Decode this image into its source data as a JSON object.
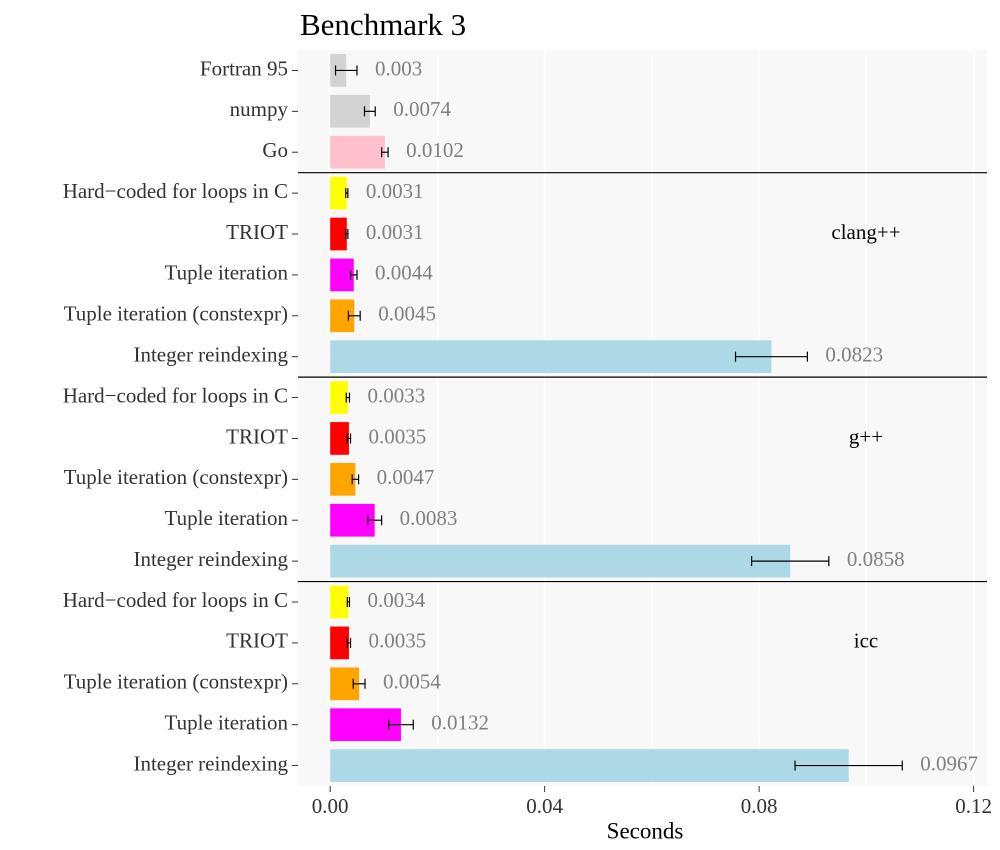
{
  "chart_data": {
    "type": "bar",
    "orientation": "horizontal",
    "title": "Benchmark 3",
    "x_label": "Seconds",
    "categories": [
      "Fortran 95",
      "numpy",
      "Go",
      "Hard−coded for loops in C",
      "TRIOT",
      "Tuple iteration",
      "Tuple iteration (constexpr)",
      "Integer reindexing",
      "Hard−coded for loops in C",
      "TRIOT",
      "Tuple iteration (constexpr)",
      "Tuple iteration",
      "Integer reindexing",
      "Hard−coded for loops in C",
      "TRIOT",
      "Tuple iteration (constexpr)",
      "Tuple iteration",
      "Integer reindexing"
    ],
    "values": [
      0.003,
      0.0074,
      0.0102,
      0.0031,
      0.0031,
      0.0044,
      0.0045,
      0.0823,
      0.0033,
      0.0035,
      0.0047,
      0.0083,
      0.0858,
      0.0034,
      0.0035,
      0.0054,
      0.0132,
      0.0967
    ],
    "errors": [
      0.002,
      0.001,
      0.0006,
      0.0002,
      0.0002,
      0.0006,
      0.0011,
      0.0067,
      0.0003,
      0.0003,
      0.0006,
      0.0013,
      0.0072,
      0.0002,
      0.0003,
      0.0011,
      0.0023,
      0.01
    ],
    "colors": [
      "#d3d3d3",
      "#d3d3d3",
      "#ffc0cb",
      "#ffff00",
      "#ff0000",
      "#ff00ff",
      "#ffa500",
      "#add8e6",
      "#ffff00",
      "#ff0000",
      "#ffa500",
      "#ff00ff",
      "#add8e6",
      "#ffff00",
      "#ff0000",
      "#ffa500",
      "#ff00ff",
      "#add8e6"
    ],
    "groups": [
      "clang++",
      "g++",
      "icc"
    ],
    "xlim": [
      -0.006,
      0.1225
    ],
    "xticks": [
      {
        "value": 0,
        "label": "0.00"
      },
      {
        "value": 0.04,
        "label": "0.04"
      },
      {
        "value": 0.08,
        "label": "0.08"
      },
      {
        "value": 0.12,
        "label": "0.12"
      }
    ],
    "grid": true
  }
}
